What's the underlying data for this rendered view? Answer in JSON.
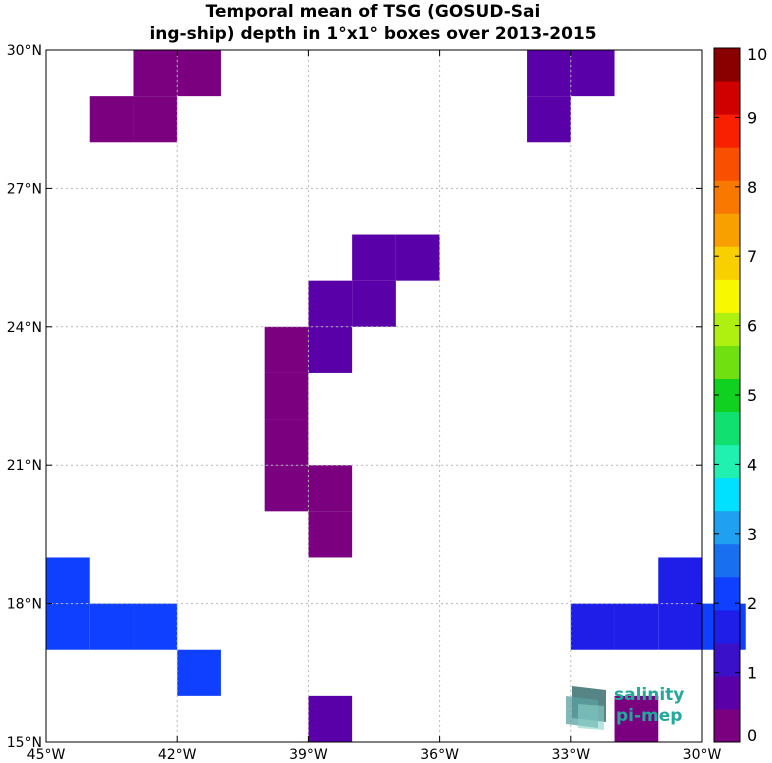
{
  "chart_data": {
    "type": "heatmap",
    "title_lines": [
      "Temporal mean of TSG (GOSUD-Sai",
      "ing-ship) depth in 1°x1° boxes over 2013-2015"
    ],
    "xlim": [
      -45,
      -30
    ],
    "ylim": [
      15,
      30
    ],
    "x_ticks": [
      {
        "value": -45,
        "label": "45°W"
      },
      {
        "value": -42,
        "label": "42°W"
      },
      {
        "value": -39,
        "label": "39°W"
      },
      {
        "value": -36,
        "label": "36°W"
      },
      {
        "value": -33,
        "label": "33°W"
      },
      {
        "value": -30,
        "label": "30°W"
      }
    ],
    "y_ticks": [
      {
        "value": 15,
        "label": "15°N"
      },
      {
        "value": 18,
        "label": "18°N"
      },
      {
        "value": 21,
        "label": "21°N"
      },
      {
        "value": 24,
        "label": "24°N"
      },
      {
        "value": 27,
        "label": "27°N"
      },
      {
        "value": 30,
        "label": "30°N"
      }
    ],
    "grid": true,
    "colorbar": {
      "range": [
        0,
        10
      ],
      "ticks": [
        0,
        1,
        2,
        3,
        4,
        5,
        6,
        7,
        8,
        9,
        10
      ],
      "colors": [
        "#7a0080",
        "#5a00a8",
        "#3a10c8",
        "#1e1ee8",
        "#1040ff",
        "#1870f0",
        "#20a0f0",
        "#00e0ff",
        "#20f0b0",
        "#10e070",
        "#10d020",
        "#70e010",
        "#b0f010",
        "#f8f800",
        "#f8d000",
        "#f8a000",
        "#f87800",
        "#f85000",
        "#f82000",
        "#d00000",
        "#8a0000"
      ]
    },
    "cells": [
      {
        "lon": -42,
        "lat": 29,
        "value": 0.2
      },
      {
        "lon": -43,
        "lat": 29,
        "value": 0.2
      },
      {
        "lon": -43,
        "lat": 28,
        "value": 0.2
      },
      {
        "lon": -44,
        "lat": 28,
        "value": 0.2
      },
      {
        "lon": -34,
        "lat": 29,
        "value": 0.6
      },
      {
        "lon": -33,
        "lat": 29,
        "value": 0.6
      },
      {
        "lon": -34,
        "lat": 28,
        "value": 0.6
      },
      {
        "lon": -38,
        "lat": 25,
        "value": 0.7
      },
      {
        "lon": -37,
        "lat": 25,
        "value": 0.7
      },
      {
        "lon": -39,
        "lat": 24,
        "value": 0.7
      },
      {
        "lon": -38,
        "lat": 24,
        "value": 0.7
      },
      {
        "lon": -39,
        "lat": 23,
        "value": 0.7
      },
      {
        "lon": -40,
        "lat": 23,
        "value": 0.2
      },
      {
        "lon": -40,
        "lat": 22,
        "value": 0.2
      },
      {
        "lon": -40,
        "lat": 21,
        "value": 0.2
      },
      {
        "lon": -40,
        "lat": 20,
        "value": 0.2
      },
      {
        "lon": -39,
        "lat": 20,
        "value": 0.2
      },
      {
        "lon": -39,
        "lat": 19,
        "value": 0.2
      },
      {
        "lon": -45,
        "lat": 18,
        "value": 2.0
      },
      {
        "lon": -45,
        "lat": 17,
        "value": 2.0
      },
      {
        "lon": -44,
        "lat": 17,
        "value": 2.0
      },
      {
        "lon": -43,
        "lat": 17,
        "value": 2.0
      },
      {
        "lon": -42,
        "lat": 16,
        "value": 2.0
      },
      {
        "lon": -31,
        "lat": 18,
        "value": 1.6
      },
      {
        "lon": -33,
        "lat": 17,
        "value": 1.6
      },
      {
        "lon": -32,
        "lat": 17,
        "value": 1.6
      },
      {
        "lon": -31,
        "lat": 17,
        "value": 1.6
      },
      {
        "lon": -30,
        "lat": 17,
        "value": 2.0
      },
      {
        "lon": -39,
        "lat": 15,
        "value": 0.7
      },
      {
        "lon": -32,
        "lat": 15,
        "value": 0.2
      }
    ]
  },
  "logo": {
    "line1": "salinity",
    "line2": "pi-mep",
    "colors": [
      "#3a7070",
      "#5aa0a0",
      "#8ad0c8"
    ]
  }
}
